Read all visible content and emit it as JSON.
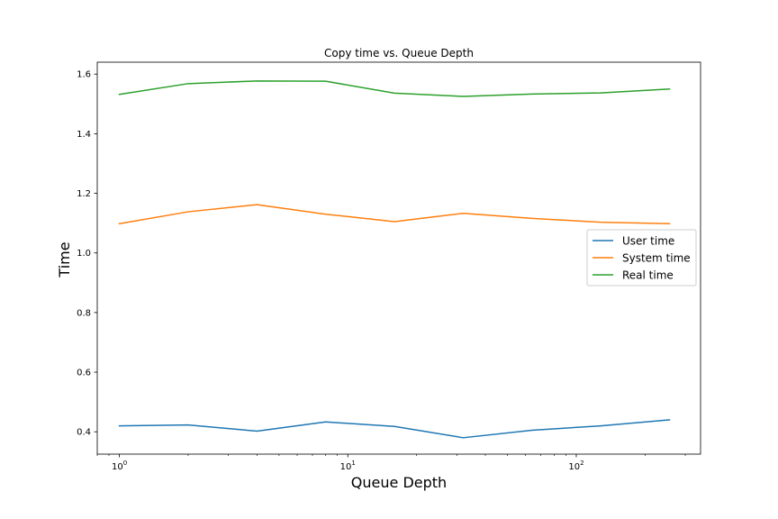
{
  "chart_data": {
    "type": "line",
    "title": "Copy time vs. Queue Depth",
    "xlabel": "Queue Depth",
    "ylabel": "Time",
    "x_scale": "log",
    "xlim": [
      0.8,
      350
    ],
    "ylim": [
      0.325,
      1.64
    ],
    "x": [
      1,
      2,
      4,
      8,
      16,
      32,
      64,
      128,
      256
    ],
    "x_ticks": [
      {
        "value": 1,
        "base": "10",
        "exp": "0"
      },
      {
        "value": 10,
        "base": "10",
        "exp": "1"
      },
      {
        "value": 100,
        "base": "10",
        "exp": "2"
      }
    ],
    "y_ticks": [
      0.4,
      0.6,
      0.8,
      1.0,
      1.2,
      1.4,
      1.6
    ],
    "y_tick_labels": [
      "0.4",
      "0.6",
      "0.8",
      "1.0",
      "1.2",
      "1.4",
      "1.6"
    ],
    "grid": false,
    "legend_position": "center-right",
    "series": [
      {
        "name": "User time",
        "color": "#1f77b4",
        "values": [
          0.42,
          0.423,
          0.402,
          0.433,
          0.418,
          0.38,
          0.405,
          0.42,
          0.44
        ]
      },
      {
        "name": "System time",
        "color": "#ff7f0e",
        "values": [
          1.098,
          1.138,
          1.162,
          1.13,
          1.105,
          1.133,
          1.116,
          1.103,
          1.098
        ]
      },
      {
        "name": "Real time",
        "color": "#2ca02c",
        "values": [
          1.532,
          1.568,
          1.577,
          1.576,
          1.536,
          1.525,
          1.533,
          1.537,
          1.55
        ]
      }
    ]
  }
}
